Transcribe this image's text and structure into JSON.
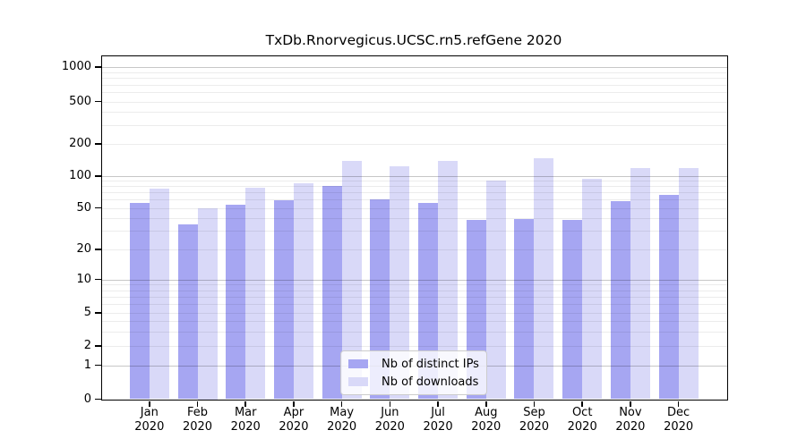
{
  "chart_data": {
    "type": "bar",
    "title": "TxDb.Rnorvegicus.UCSC.rn5.refGene 2020",
    "categories": [
      "Jan",
      "Feb",
      "Mar",
      "Apr",
      "May",
      "Jun",
      "Jul",
      "Aug",
      "Sep",
      "Oct",
      "Nov",
      "Dec"
    ],
    "category_year": "2020",
    "series": [
      {
        "name": "Nb of distinct IPs",
        "color": "#a6a6f2",
        "values": [
          56,
          35,
          54,
          59,
          80,
          60,
          56,
          38,
          39,
          38,
          58,
          66
        ]
      },
      {
        "name": "Nb of downloads",
        "color": "#d9d9f8",
        "values": [
          76,
          50,
          78,
          86,
          139,
          123,
          138,
          90,
          147,
          94,
          120,
          118
        ]
      }
    ],
    "y_ticks": [
      0,
      1,
      2,
      5,
      10,
      20,
      50,
      100,
      200,
      500,
      1000
    ],
    "ylim": [
      0,
      1000
    ],
    "y_scale": "log-with-zero-baseline",
    "grid": "horizontal, log minor + decade major",
    "legend_position": "inside-bottom-center",
    "colors": {
      "background": "#ffffff",
      "axis": "#000000",
      "major_grid": "#c7c7c7",
      "minor_grid": "#ebebeb",
      "legend_border": "#cccccc"
    }
  }
}
